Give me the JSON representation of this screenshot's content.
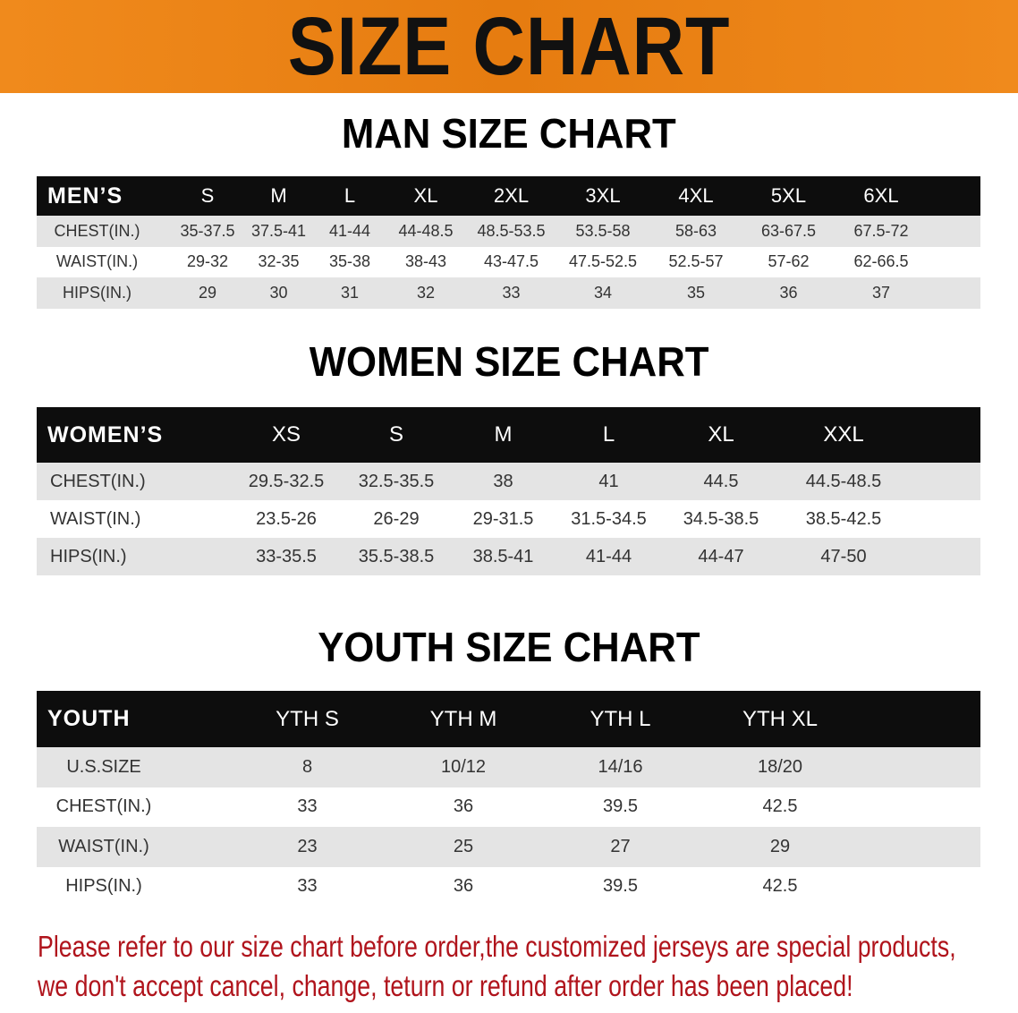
{
  "banner_title": "SIZE CHART",
  "men": {
    "title": "MAN SIZE CHART",
    "header": [
      "MEN’S",
      "S",
      "M",
      "L",
      "XL",
      "2XL",
      "3XL",
      "4XL",
      "5XL",
      "6XL"
    ],
    "rows": [
      [
        "CHEST(IN.)",
        "35-37.5",
        "37.5-41",
        "41-44",
        "44-48.5",
        "48.5-53.5",
        "53.5-58",
        "58-63",
        "63-67.5",
        "67.5-72"
      ],
      [
        "WAIST(IN.)",
        "29-32",
        "32-35",
        "35-38",
        "38-43",
        "43-47.5",
        "47.5-52.5",
        "52.5-57",
        "57-62",
        "62-66.5"
      ],
      [
        "HIPS(IN.)",
        "29",
        "30",
        "31",
        "32",
        "33",
        "34",
        "35",
        "36",
        "37"
      ]
    ]
  },
  "women": {
    "title": "WOMEN SIZE CHART",
    "header": [
      "WOMEN’S",
      "XS",
      "S",
      "M",
      "L",
      "XL",
      "XXL"
    ],
    "rows": [
      [
        "CHEST(IN.)",
        "29.5-32.5",
        "32.5-35.5",
        "38",
        "41",
        "44.5",
        "44.5-48.5"
      ],
      [
        "WAIST(IN.)",
        "23.5-26",
        "26-29",
        "29-31.5",
        "31.5-34.5",
        "34.5-38.5",
        "38.5-42.5"
      ],
      [
        "HIPS(IN.)",
        "33-35.5",
        "35.5-38.5",
        "38.5-41",
        "41-44",
        "44-47",
        "47-50"
      ]
    ]
  },
  "youth": {
    "title": "YOUTH SIZE CHART",
    "header": [
      "YOUTH",
      "YTH S",
      "YTH M",
      "YTH L",
      "YTH XL"
    ],
    "rows": [
      [
        "U.S.SIZE",
        "8",
        "10/12",
        "14/16",
        "18/20"
      ],
      [
        "CHEST(IN.)",
        "33",
        "36",
        "39.5",
        "42.5"
      ],
      [
        "WAIST(IN.)",
        "23",
        "25",
        "27",
        "29"
      ],
      [
        "HIPS(IN.)",
        "33",
        "36",
        "39.5",
        "42.5"
      ]
    ]
  },
  "note": {
    "line1": "Please refer to our size chart before order,the customized jerseys are special products,",
    "line2": "we don't accept cancel, change, teturn or refund after order has been placed!"
  },
  "colors": {
    "banner": "#ec8418",
    "header_row": "#0d0d0d",
    "note_text": "#b0141c",
    "stripe": "#e4e4e4"
  }
}
